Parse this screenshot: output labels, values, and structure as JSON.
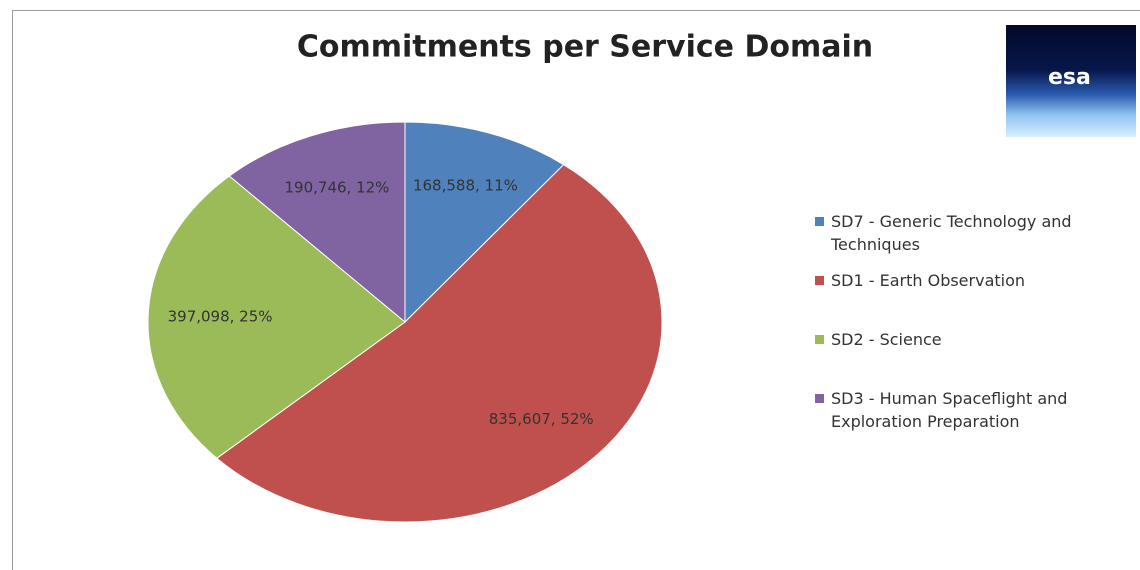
{
  "chart_data": {
    "type": "pie",
    "title": "Commitments per Service Domain",
    "categories": [
      "SD7 - Generic Technology and Techniques",
      "SD1 - Earth Observation",
      "SD2 - Science",
      "SD3 - Human Spaceflight and Exploration Preparation"
    ],
    "values": [
      168588,
      835607,
      397098,
      190746
    ],
    "value_labels": [
      "168,588, 11%",
      "835,607, 52%",
      "397,098, 25%",
      "190,746, 12%"
    ],
    "colors": [
      "#4f81bd",
      "#c0504d",
      "#9bbb59",
      "#8064a2"
    ],
    "legend": "right"
  },
  "logo": "esa"
}
